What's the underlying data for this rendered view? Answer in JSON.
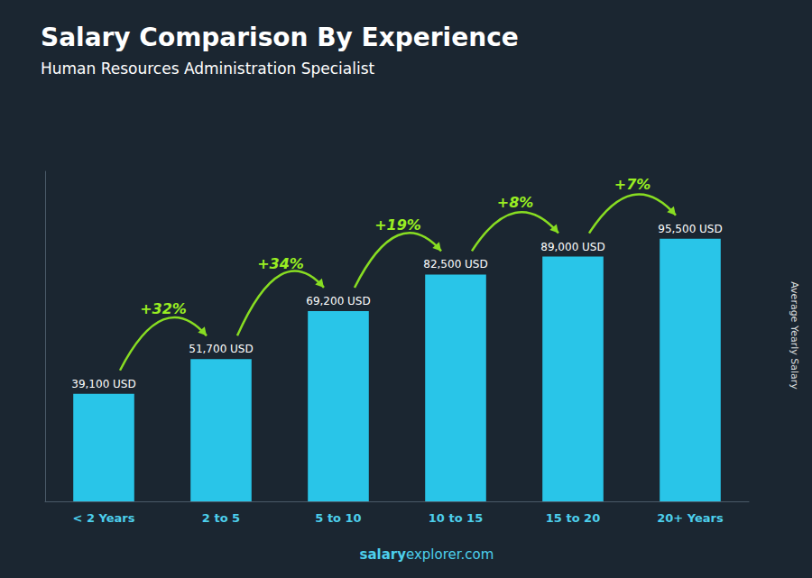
{
  "chart_data": {
    "type": "bar",
    "title": "Salary Comparison By Experience",
    "subtitle": "Human Resources Administration Specialist",
    "ylabel": "Average Yearly Salary",
    "categories": [
      "< 2 Years",
      "2 to 5",
      "5 to 10",
      "10 to 15",
      "15 to 20",
      "20+ Years"
    ],
    "values": [
      39100,
      51700,
      69200,
      82500,
      89000,
      95500
    ],
    "value_labels": [
      "39,100 USD",
      "51,700 USD",
      "69,200 USD",
      "82,500 USD",
      "89,000 USD",
      "95,500 USD"
    ],
    "annotations": [
      "+32%",
      "+34%",
      "+19%",
      "+8%",
      "+7%"
    ],
    "watermark": [
      "salary",
      "explorer.com"
    ],
    "color": "#29C5E8",
    "ylim": [
      0,
      120000
    ],
    "grid": false,
    "data_labels": true,
    "tick_labels": "x"
  }
}
